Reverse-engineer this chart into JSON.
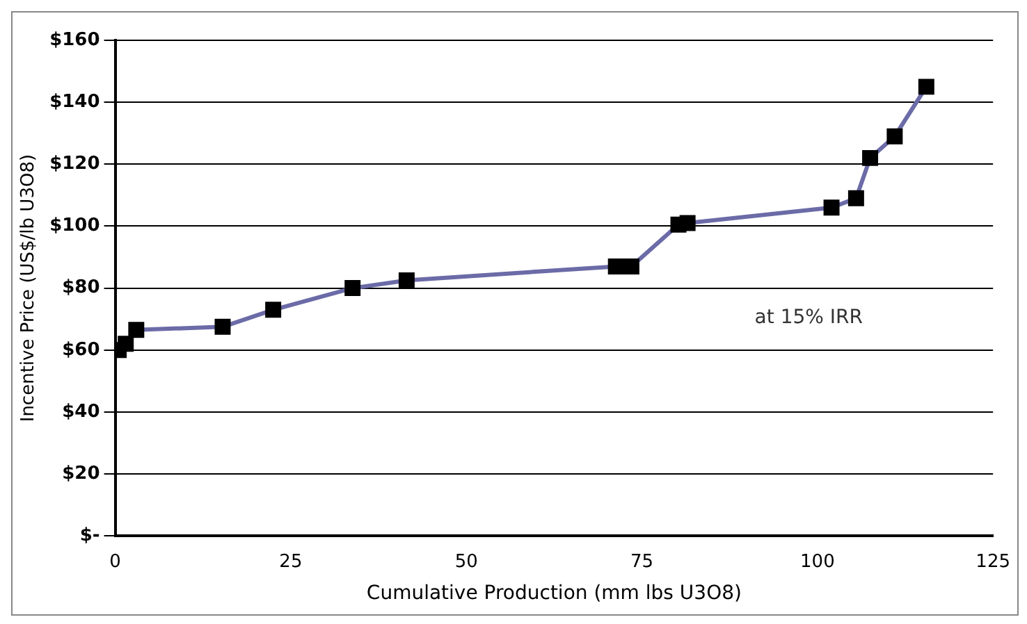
{
  "chart_data": {
    "type": "line",
    "xlabel": "Cumulative Production (mm lbs U3O8)",
    "ylabel": "Incentive Price (US$/lb U3O8)",
    "x": [
      0.5,
      1.5,
      3,
      15.3,
      22.5,
      33.8,
      41.5,
      71.3,
      73.5,
      80.2,
      81.5,
      102,
      105.5,
      107.5,
      111,
      115.5
    ],
    "series": [
      {
        "color": "#6b6ba8",
        "values": [
          60,
          62,
          66.5,
          67.5,
          73,
          80,
          82.5,
          87,
          87,
          100.5,
          101,
          106,
          109,
          122,
          129,
          145
        ]
      }
    ],
    "xlim": [
      0,
      125
    ],
    "xticks": [
      0,
      25,
      50,
      75,
      100,
      125
    ],
    "ylim": [
      0,
      160
    ],
    "yticks": [
      {
        "value": 0,
        "label": "$-"
      },
      {
        "value": 20,
        "label": "$20"
      },
      {
        "value": 40,
        "label": "$40"
      },
      {
        "value": 60,
        "label": "$60"
      },
      {
        "value": 80,
        "label": "$80"
      },
      {
        "value": 100,
        "label": "$100"
      },
      {
        "value": 120,
        "label": "$120"
      },
      {
        "value": 140,
        "label": "$140"
      },
      {
        "value": 160,
        "label": "$160"
      }
    ],
    "grid": "y",
    "marker": "square",
    "line_style": "solid",
    "legend": false,
    "annotations": [
      "at 15% IRR"
    ]
  }
}
